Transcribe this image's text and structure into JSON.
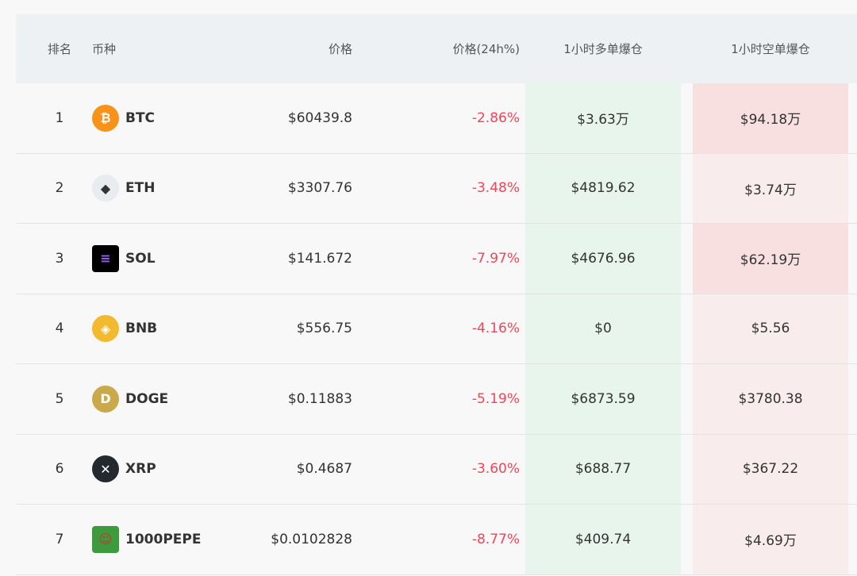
{
  "headers": {
    "rank": "排名",
    "coin": "币种",
    "price": "价格",
    "change": "价格(24h%)",
    "long": "1小时多单爆仓",
    "short": "1小时空单爆仓"
  },
  "rows": [
    {
      "rank": "1",
      "symbol": "BTC",
      "icon": "bitcoin-icon",
      "price": "$60439.8",
      "change": "-2.86%",
      "long": "$3.63万",
      "short": "$94.18万"
    },
    {
      "rank": "2",
      "symbol": "ETH",
      "icon": "ethereum-icon",
      "price": "$3307.76",
      "change": "-3.48%",
      "long": "$4819.62",
      "short": "$3.74万"
    },
    {
      "rank": "3",
      "symbol": "SOL",
      "icon": "solana-icon",
      "price": "$141.672",
      "change": "-7.97%",
      "long": "$4676.96",
      "short": "$62.19万"
    },
    {
      "rank": "4",
      "symbol": "BNB",
      "icon": "bnb-icon",
      "price": "$556.75",
      "change": "-4.16%",
      "long": "$0",
      "short": "$5.56"
    },
    {
      "rank": "5",
      "symbol": "DOGE",
      "icon": "doge-icon",
      "price": "$0.11883",
      "change": "-5.19%",
      "long": "$6873.59",
      "short": "$3780.38"
    },
    {
      "rank": "6",
      "symbol": "XRP",
      "icon": "xrp-icon",
      "price": "$0.4687",
      "change": "-3.60%",
      "long": "$688.77",
      "short": "$367.22"
    },
    {
      "rank": "7",
      "symbol": "1000PEPE",
      "icon": "pepe-icon",
      "price": "$0.0102828",
      "change": "-8.77%",
      "long": "$409.74",
      "short": "$4.69万"
    }
  ],
  "colors": {
    "negative": "#f0455a",
    "long_bg": "#e8f5ec",
    "short_bg": "#f9e0e0"
  }
}
